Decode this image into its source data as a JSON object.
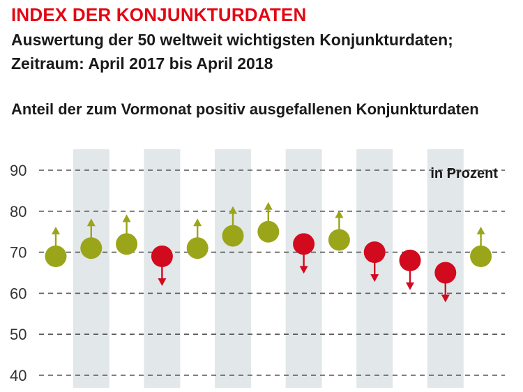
{
  "title": "INDEX DER KONJUNKTURDATEN",
  "subtitle_line1": "Auswertung der 50 weltweit wichtigsten Konjunkturdaten;",
  "subtitle_line2": "Zeitraum: April 2017 bis April 2018",
  "chart_heading": "Anteil der zum Vormonat positiv ausgefallenen Konjunkturdaten",
  "colors": {
    "up": "#9aa519",
    "down": "#d10a1e",
    "band": "#e2e7ea",
    "grid": "#555555",
    "title": "#e30613"
  },
  "chart_data": {
    "type": "scatter",
    "unit_label": "in Prozent",
    "ylim": [
      40,
      90
    ],
    "yticks": [
      40,
      50,
      60,
      70,
      80,
      90
    ],
    "grid": true,
    "values": [
      69,
      71,
      72,
      69,
      71,
      74,
      75,
      72,
      73,
      70,
      68,
      65,
      69
    ],
    "direction": [
      "up",
      "up",
      "up",
      "down",
      "up",
      "up",
      "up",
      "down",
      "up",
      "down",
      "down",
      "down",
      "up"
    ],
    "shaded_columns": [
      1,
      3,
      5,
      7,
      9,
      11
    ]
  }
}
